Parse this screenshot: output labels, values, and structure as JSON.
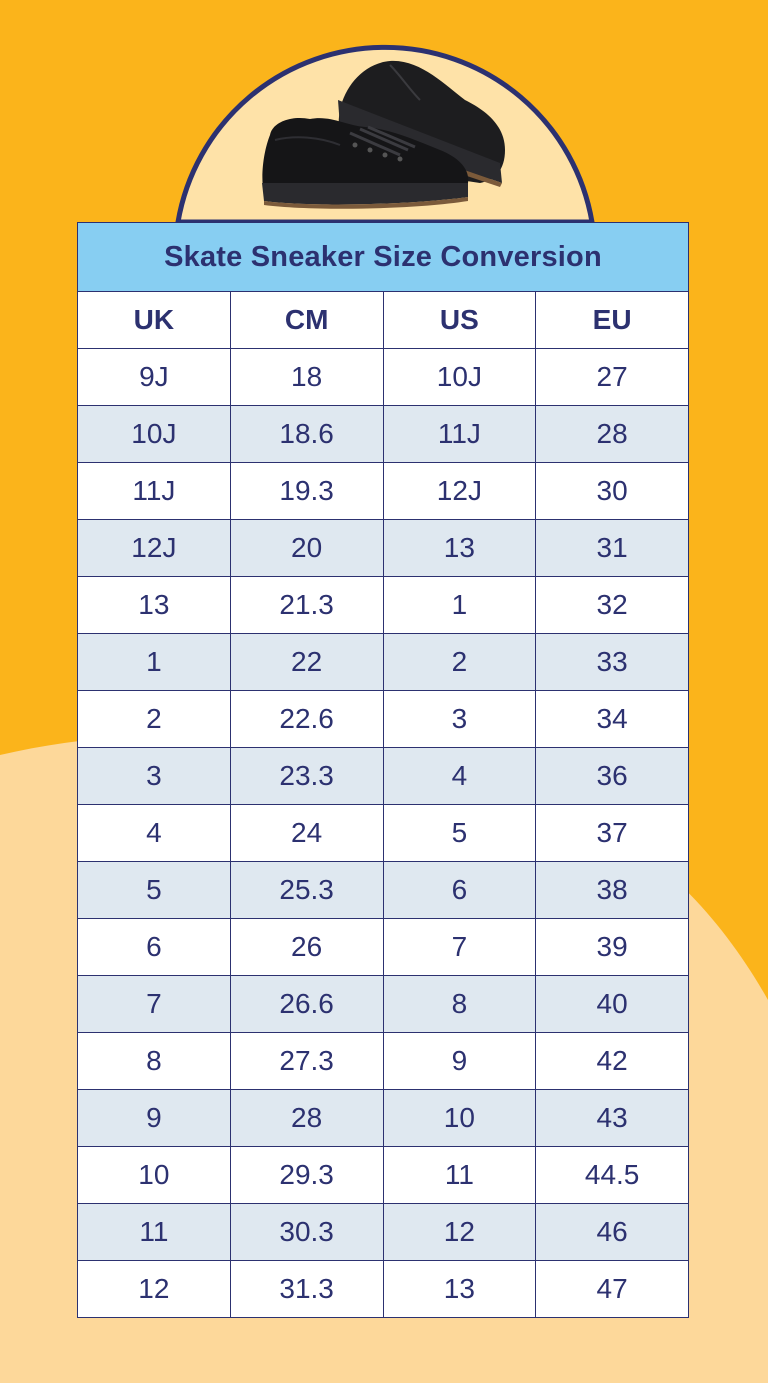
{
  "colors": {
    "background_orange": "#fbb41b",
    "background_cream": "#fdd89a",
    "circle_fill": "#fee2a8",
    "outline_navy": "#2c3170",
    "title_band": "#87cef2",
    "row_stripe": "#dfe8f0",
    "row_plain": "#ffffff"
  },
  "illustration": {
    "icon": "black-skate-sneakers"
  },
  "table": {
    "title": "Skate Sneaker Size Conversion",
    "headers": [
      "UK",
      "CM",
      "US",
      "EU"
    ],
    "rows": [
      [
        "9J",
        "18",
        "10J",
        "27"
      ],
      [
        "10J",
        "18.6",
        "11J",
        "28"
      ],
      [
        "11J",
        "19.3",
        "12J",
        "30"
      ],
      [
        "12J",
        "20",
        "13",
        "31"
      ],
      [
        "13",
        "21.3",
        "1",
        "32"
      ],
      [
        "1",
        "22",
        "2",
        "33"
      ],
      [
        "2",
        "22.6",
        "3",
        "34"
      ],
      [
        "3",
        "23.3",
        "4",
        "36"
      ],
      [
        "4",
        "24",
        "5",
        "37"
      ],
      [
        "5",
        "25.3",
        "6",
        "38"
      ],
      [
        "6",
        "26",
        "7",
        "39"
      ],
      [
        "7",
        "26.6",
        "8",
        "40"
      ],
      [
        "8",
        "27.3",
        "9",
        "42"
      ],
      [
        "9",
        "28",
        "10",
        "43"
      ],
      [
        "10",
        "29.3",
        "11",
        "44.5"
      ],
      [
        "11",
        "30.3",
        "12",
        "46"
      ],
      [
        "12",
        "31.3",
        "13",
        "47"
      ]
    ]
  }
}
